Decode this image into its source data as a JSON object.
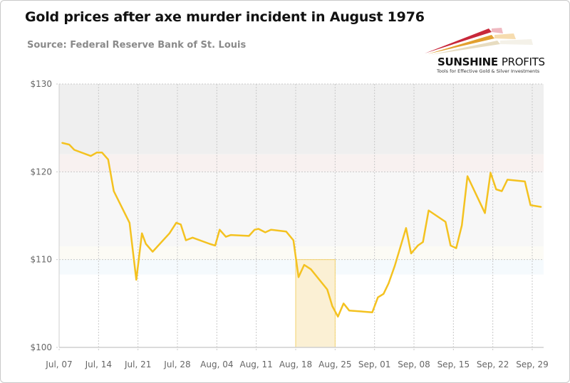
{
  "title": "Gold prices after axe murder incident in August 1976",
  "subtitle": "Source: Federal Reserve Bank of St. Louis",
  "logo": {
    "brand_bold": "SUNSHINE",
    "brand_light": "PROFITS",
    "tagline": "Tools for Effective Gold & Silver Investments"
  },
  "colors": {
    "line": "#f4c220",
    "highlight_fill": "#fbf0d4",
    "highlight_stroke": "#f3d26e"
  },
  "chart_data": {
    "type": "line",
    "title": "Gold prices after axe murder incident in August 1976",
    "xlabel": "",
    "ylabel": "",
    "x_unit": "days since Jul 07, 1976",
    "xlim": [
      0,
      86
    ],
    "ylim": [
      100,
      130
    ],
    "y_ticks": [
      100,
      110,
      120,
      130
    ],
    "y_tick_labels": [
      "$100",
      "$110",
      "$120",
      "$130"
    ],
    "x_ticks": [
      0,
      7,
      14,
      21,
      28,
      35,
      42,
      49,
      56,
      63,
      70,
      77,
      84
    ],
    "x_tick_labels": [
      "Jul, 07",
      "Jul, 14",
      "Jul, 21",
      "Jul, 28",
      "Aug, 04",
      "Aug, 11",
      "Aug, 18",
      "Aug, 25",
      "Sep, 01",
      "Sep, 08",
      "Sep, 15",
      "Sep, 22",
      "Sep, 29"
    ],
    "grid": true,
    "highlight": {
      "x": [
        42,
        49
      ],
      "y": [
        100,
        110
      ]
    },
    "bands": [
      {
        "y": [
          122,
          130
        ],
        "color": "#efefef"
      },
      {
        "y": [
          120,
          122
        ],
        "color": "#f8f1f0"
      },
      {
        "y": [
          111.5,
          120
        ],
        "color": "#f7f7f7"
      },
      {
        "y": [
          110,
          111.5
        ],
        "color": "#fcfbf5"
      },
      {
        "y": [
          108.3,
          110
        ],
        "color": "#f5fafd"
      }
    ],
    "series": [
      {
        "name": "Gold price",
        "x": [
          0.5,
          1.8,
          2.7,
          5.6,
          6.7,
          7.6,
          8.7,
          9.7,
          12.5,
          13.7,
          14.7,
          15.4,
          16.6,
          19.6,
          20.8,
          21.6,
          22.5,
          23.7,
          26.7,
          27.7,
          28.5,
          29.6,
          30.5,
          33.7,
          34.7,
          35.4,
          36.6,
          37.6,
          40.3,
          41.6,
          42.5,
          43.5,
          44.7,
          47.6,
          48.5,
          49.5,
          50.5,
          51.5,
          55.6,
          56.6,
          57.6,
          58.5,
          59.6,
          61.6,
          62.5,
          63.7,
          64.6,
          65.6,
          68.6,
          69.5,
          70.5,
          71.5,
          72.5,
          75.6,
          76.6,
          77.6,
          78.6,
          79.6,
          82.7,
          83.7,
          84.6,
          85.6
        ],
        "values": [
          123.3,
          123.1,
          122.5,
          121.8,
          122.2,
          122.2,
          121.4,
          117.8,
          114.2,
          107.7,
          113.0,
          111.8,
          110.9,
          113.0,
          114.2,
          114.0,
          112.2,
          112.5,
          111.8,
          111.6,
          113.4,
          112.6,
          112.8,
          112.7,
          113.4,
          113.5,
          113.1,
          113.4,
          113.2,
          112.2,
          108.0,
          109.4,
          108.9,
          106.6,
          104.7,
          103.5,
          105.0,
          104.2,
          104.0,
          105.7,
          106.1,
          107.3,
          109.3,
          113.6,
          110.7,
          111.6,
          112.0,
          115.6,
          114.3,
          111.6,
          111.3,
          113.9,
          119.5,
          115.3,
          119.9,
          118.0,
          117.8,
          119.1,
          118.9,
          116.2,
          116.1,
          116.0
        ]
      }
    ]
  }
}
